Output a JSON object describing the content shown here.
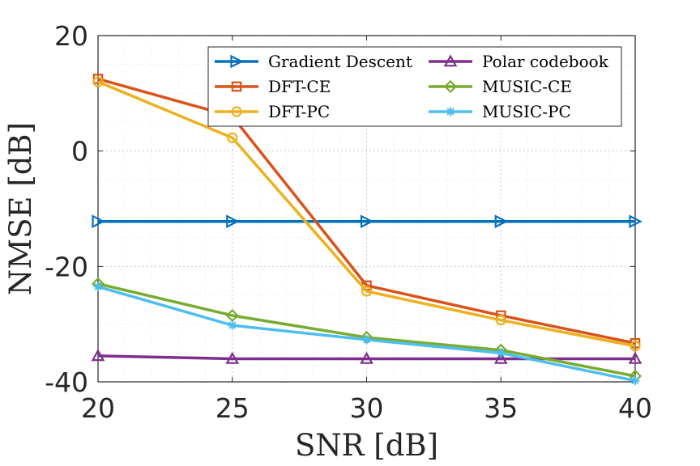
{
  "chart_data": {
    "type": "line",
    "xlabel": "SNR [dB]",
    "ylabel": "NMSE [dB]",
    "xlim": [
      20,
      40
    ],
    "ylim": [
      -40,
      20
    ],
    "x": [
      20,
      25,
      30,
      35,
      40
    ],
    "xticks": [
      "20",
      "25",
      "30",
      "35",
      "40"
    ],
    "yticks": [
      "-40",
      "-20",
      "0",
      "20"
    ],
    "grid": "on (major and minor dotted)",
    "legend_location": "top-right",
    "series": [
      {
        "name": "Gradient Descent",
        "color": "#0072BD",
        "marker": "triangle-right",
        "values": [
          -12.2,
          -12.2,
          -12.2,
          -12.2,
          -12.2
        ]
      },
      {
        "name": "Polar codebook",
        "color": "#7E2F8E",
        "marker": "triangle-up",
        "values": [
          -35.5,
          -36.0,
          -36.0,
          -36.0,
          -36.0
        ]
      },
      {
        "name": "DFT-CE",
        "color": "#D95319",
        "marker": "square",
        "values": [
          12.5,
          6.0,
          -23.3,
          -28.5,
          -33.3
        ]
      },
      {
        "name": "MUSIC-CE",
        "color": "#77AC30",
        "marker": "diamond",
        "values": [
          -23.0,
          -28.5,
          -32.3,
          -34.5,
          -39.0
        ]
      },
      {
        "name": "DFT-PC",
        "color": "#EDB120",
        "marker": "circle",
        "values": [
          12.0,
          2.3,
          -24.3,
          -29.3,
          -33.8
        ]
      },
      {
        "name": "MUSIC-PC",
        "color": "#4DBEEE",
        "marker": "asterisk",
        "values": [
          -23.5,
          -30.2,
          -32.7,
          -35.0,
          -39.8
        ]
      }
    ]
  }
}
